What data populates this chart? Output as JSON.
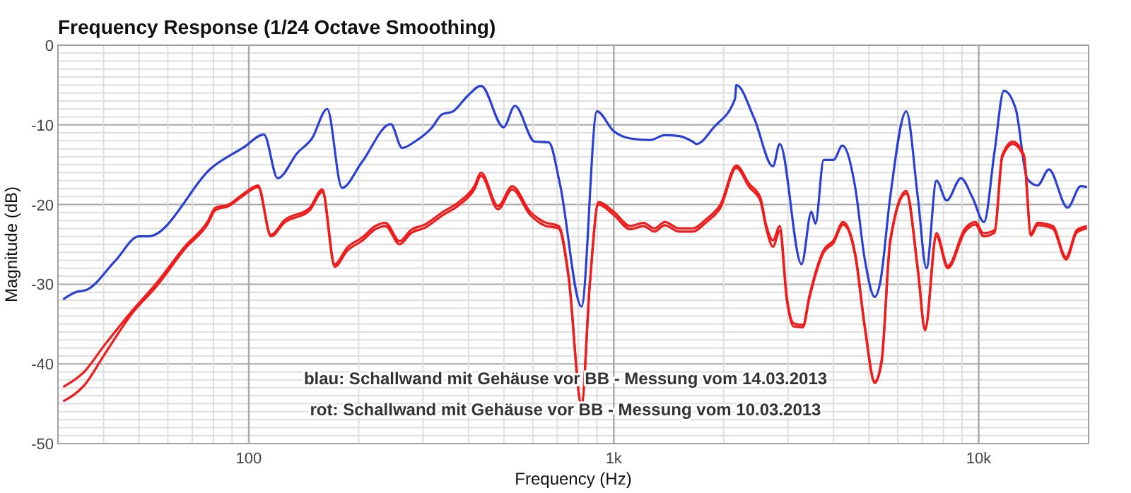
{
  "chart_data": {
    "type": "line",
    "title": "Frequency Response (1/24 Octave Smoothing)",
    "xlabel": "Frequency (Hz)",
    "ylabel": "Magnitude (dB)",
    "log": "x",
    "grid": true,
    "line_style": "solid",
    "marker": "none",
    "xlim": [
      30,
      20000
    ],
    "ylim": [
      -50,
      0
    ],
    "xticks": [
      {
        "value": 40,
        "label": null
      },
      {
        "value": 50,
        "label": null
      },
      {
        "value": 60,
        "label": null
      },
      {
        "value": 70,
        "label": null
      },
      {
        "value": 80,
        "label": null
      },
      {
        "value": 90,
        "label": null
      },
      100,
      {
        "value": 200,
        "label": null
      },
      {
        "value": 300,
        "label": null
      },
      {
        "value": 400,
        "label": null
      },
      {
        "value": 500,
        "label": null
      },
      {
        "value": 600,
        "label": null
      },
      {
        "value": 700,
        "label": null
      },
      {
        "value": 800,
        "label": null
      },
      {
        "value": 900,
        "label": null
      },
      {
        "value": 1000,
        "label": "1k"
      },
      {
        "value": 2000,
        "label": null
      },
      {
        "value": 3000,
        "label": null
      },
      {
        "value": 4000,
        "label": null
      },
      {
        "value": 5000,
        "label": null
      },
      {
        "value": 6000,
        "label": null
      },
      {
        "value": 7000,
        "label": null
      },
      {
        "value": 8000,
        "label": null
      },
      {
        "value": 9000,
        "label": null
      },
      {
        "value": 10000,
        "label": "10k"
      }
    ],
    "yticks": [
      -50,
      {
        "value": -49,
        "label": null
      },
      {
        "value": -48,
        "label": null
      },
      {
        "value": -47,
        "label": null
      },
      {
        "value": -46,
        "label": null
      },
      {
        "value": -45,
        "label": null
      },
      {
        "value": -44,
        "label": null
      },
      {
        "value": -43,
        "label": null
      },
      {
        "value": -42,
        "label": null
      },
      {
        "value": -41,
        "label": null
      },
      -40,
      {
        "value": -39,
        "label": null
      },
      {
        "value": -38,
        "label": null
      },
      {
        "value": -37,
        "label": null
      },
      {
        "value": -36,
        "label": null
      },
      {
        "value": -35,
        "label": null
      },
      {
        "value": -34,
        "label": null
      },
      {
        "value": -33,
        "label": null
      },
      {
        "value": -32,
        "label": null
      },
      {
        "value": -31,
        "label": null
      },
      -30,
      {
        "value": -29,
        "label": null
      },
      {
        "value": -28,
        "label": null
      },
      {
        "value": -27,
        "label": null
      },
      {
        "value": -26,
        "label": null
      },
      {
        "value": -25,
        "label": null
      },
      {
        "value": -24,
        "label": null
      },
      {
        "value": -23,
        "label": null
      },
      {
        "value": -22,
        "label": null
      },
      {
        "value": -21,
        "label": null
      },
      -20,
      {
        "value": -19,
        "label": null
      },
      {
        "value": -18,
        "label": null
      },
      {
        "value": -17,
        "label": null
      },
      {
        "value": -16,
        "label": null
      },
      {
        "value": -15,
        "label": null
      },
      {
        "value": -14,
        "label": null
      },
      {
        "value": -13,
        "label": null
      },
      {
        "value": -12,
        "label": null
      },
      {
        "value": -11,
        "label": null
      },
      -10,
      {
        "value": -9,
        "label": null
      },
      {
        "value": -8,
        "label": null
      },
      {
        "value": -7,
        "label": null
      },
      {
        "value": -6,
        "label": null
      },
      {
        "value": -5,
        "label": null
      },
      {
        "value": -4,
        "label": null
      },
      {
        "value": -3,
        "label": null
      },
      {
        "value": -2,
        "label": null
      },
      {
        "value": -1,
        "label": null
      },
      0
    ],
    "annotations": [
      "blau: Schallwand mit Gehäuse vor BB - Messung vom 14.03.2013",
      "rot: Schallwand mit Gehäuse vor BB - Messung vom 10.03.2013"
    ],
    "series": [
      {
        "color": "#2a3fd8",
        "x": [
          31,
          33.5,
          36,
          43,
          50,
          53,
          80,
          97,
          110,
          120,
          136,
          149,
          164,
          180,
          204,
          245,
          263,
          285,
          318,
          338,
          363,
          397,
          433,
          499,
          536,
          607,
          664,
          712,
          816,
          899,
          1000,
          1110,
          1257,
          1380,
          1510,
          1645,
          1686,
          1880,
          2150,
          2167,
          2426,
          2730,
          2850,
          3270,
          3480,
          3570,
          3760,
          4000,
          4230,
          4590,
          4870,
          5190,
          5370,
          5720,
          6330,
          6810,
          7190,
          7660,
          8170,
          8940,
          9610,
          10340,
          11060,
          11720,
          12630,
          13590,
          14500,
          15570,
          17520,
          19020,
          19800
        ],
        "values": [
          -31.9,
          -31,
          -30.7,
          -27.1,
          -24,
          -24,
          -15.2,
          -12.8,
          -11.2,
          -16.7,
          -13.5,
          -11.7,
          -8,
          -17.9,
          -14.7,
          -9.9,
          -12.9,
          -12.1,
          -10.3,
          -8.7,
          -8.3,
          -6.4,
          -5.1,
          -10.3,
          -7.6,
          -12.1,
          -12.2,
          -17.4,
          -32.8,
          -8.3,
          -10.8,
          -11.7,
          -11.9,
          -11.3,
          -11.4,
          -12.1,
          -12.4,
          -10.3,
          -6.7,
          -5,
          -9.2,
          -15.2,
          -12.4,
          -27.5,
          -20.9,
          -22.4,
          -14.4,
          -14.4,
          -12.6,
          -17.9,
          -26.8,
          -31.6,
          -29.8,
          -19.1,
          -8.3,
          -19.1,
          -28,
          -17,
          -19.5,
          -16.7,
          -19.1,
          -22.2,
          -13.2,
          -5.7,
          -8,
          -16.8,
          -17.6,
          -15.6,
          -20.4,
          -17.7,
          -17.8
        ]
      },
      {
        "color": "#f01c1c",
        "x": [
          31,
          35.4,
          40,
          48,
          56,
          67,
          77,
          81,
          88,
          97,
          106,
          115,
          125,
          147,
          159,
          172,
          186,
          205,
          222,
          237,
          259,
          278,
          304,
          341,
          376,
          415,
          433,
          482,
          527,
          590,
          645,
          707,
          752,
          816,
          860,
          908,
          1000,
          1110,
          1206,
          1293,
          1380,
          1510,
          1645,
          1795,
          1960,
          2167,
          2350,
          2520,
          2620,
          2730,
          2850,
          2980,
          3110,
          3300,
          3430,
          3760,
          4000,
          4250,
          4590,
          4870,
          5190,
          5420,
          5720,
          6330,
          6810,
          7130,
          7660,
          8230,
          9170,
          9800,
          10300,
          11060,
          11600,
          12400,
          13300,
          13900,
          14500,
          15950,
          17350,
          18570,
          19800
        ],
        "values": [
          -42.9,
          -41,
          -37.8,
          -33.3,
          -29.8,
          -25.2,
          -22.2,
          -20.4,
          -20,
          -18.6,
          -17.6,
          -23.8,
          -22,
          -20.4,
          -18.1,
          -27.5,
          -25.4,
          -24.1,
          -22.7,
          -22.3,
          -24.6,
          -23.2,
          -22.5,
          -20.9,
          -19.7,
          -17.7,
          -16,
          -20.2,
          -17.7,
          -20.9,
          -22.2,
          -22.7,
          -28.9,
          -45,
          -29.8,
          -19.7,
          -20.9,
          -22.7,
          -22.3,
          -23,
          -22.2,
          -23,
          -23,
          -21.8,
          -20,
          -15.1,
          -17.4,
          -19.1,
          -22.7,
          -24.5,
          -22.7,
          -31.6,
          -34.9,
          -35.1,
          -31.6,
          -25.7,
          -24.5,
          -22.2,
          -26.2,
          -35.1,
          -42.2,
          -39.5,
          -24.5,
          -18.3,
          -28,
          -35.5,
          -23.6,
          -27.7,
          -23,
          -22.2,
          -23.6,
          -23.2,
          -13.8,
          -12.1,
          -13.8,
          -23.6,
          -22.3,
          -22.7,
          -26.6,
          -23.2,
          -22.7
        ]
      },
      {
        "color": "#f01c1c",
        "x": [
          31,
          35.4,
          40,
          48,
          56,
          67,
          77,
          81,
          88,
          97,
          106,
          115,
          125,
          147,
          159,
          172,
          186,
          205,
          222,
          237,
          259,
          278,
          304,
          341,
          376,
          415,
          433,
          482,
          527,
          590,
          645,
          707,
          752,
          816,
          860,
          908,
          1000,
          1110,
          1206,
          1293,
          1380,
          1510,
          1645,
          1795,
          1960,
          2167,
          2350,
          2520,
          2620,
          2730,
          2850,
          2980,
          3110,
          3300,
          3430,
          3760,
          4000,
          4250,
          4590,
          4870,
          5190,
          5420,
          5720,
          6330,
          6810,
          7130,
          7660,
          8230,
          9170,
          9800,
          10300,
          11060,
          11600,
          12400,
          13300,
          13900,
          14500,
          15950,
          17350,
          18570,
          19800
        ],
        "values": [
          -44.7,
          -42.7,
          -39,
          -33.6,
          -30.2,
          -25.5,
          -22.5,
          -20.7,
          -20.2,
          -18.8,
          -17.8,
          -24,
          -22.3,
          -20.7,
          -18.4,
          -27.8,
          -25.8,
          -24.5,
          -23.1,
          -22.7,
          -25,
          -23.6,
          -22.9,
          -21.3,
          -20.1,
          -18.1,
          -16.4,
          -20.6,
          -18.1,
          -21.3,
          -22.6,
          -23,
          -29.2,
          -45.2,
          -30,
          -20,
          -21.3,
          -23.1,
          -22.7,
          -23.4,
          -22.6,
          -23.4,
          -23.4,
          -22.2,
          -20.4,
          -15.4,
          -17.8,
          -19.5,
          -23.1,
          -25.3,
          -23.3,
          -32,
          -35.3,
          -35.4,
          -31.9,
          -26,
          -24.8,
          -22.5,
          -26.5,
          -35.4,
          -42.4,
          -39.8,
          -24.8,
          -18.6,
          -28.3,
          -35.8,
          -24,
          -28,
          -23.4,
          -22.5,
          -24,
          -23.5,
          -14.1,
          -12.4,
          -14.1,
          -23.9,
          -22.6,
          -23,
          -26.9,
          -23.5,
          -23
        ]
      }
    ]
  }
}
